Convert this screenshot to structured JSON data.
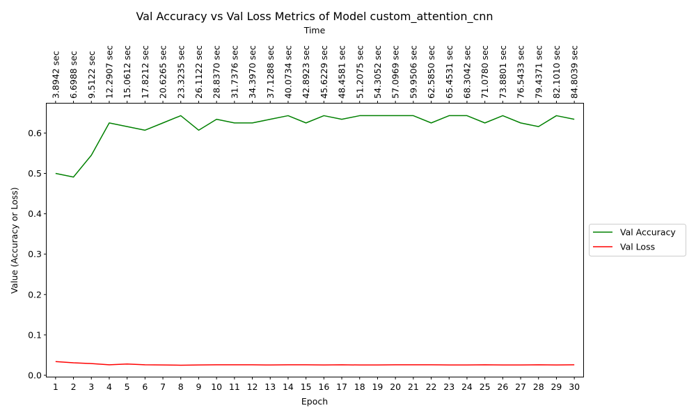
{
  "chart_data": {
    "type": "line",
    "title": "Val Accuracy vs Val Loss Metrics of Model custom_attention_cnn",
    "xlabel": "Epoch",
    "ylabel": "Value (Accuracy or Loss)",
    "top_xlabel": "Time",
    "x": [
      1,
      2,
      3,
      4,
      5,
      6,
      7,
      8,
      9,
      10,
      11,
      12,
      13,
      14,
      15,
      16,
      17,
      18,
      19,
      20,
      21,
      22,
      23,
      24,
      25,
      26,
      27,
      28,
      29,
      30
    ],
    "top_tick_labels": [
      "3.8942 sec",
      "6.6988 sec",
      "9.5122 sec",
      "12.2907 sec",
      "15.0612 sec",
      "17.8212 sec",
      "20.6265 sec",
      "23.3235 sec",
      "26.1122 sec",
      "28.8370 sec",
      "31.7376 sec",
      "34.3970 sec",
      "37.1288 sec",
      "40.0734 sec",
      "42.8923 sec",
      "45.6229 sec",
      "48.4581 sec",
      "51.2075 sec",
      "54.3052 sec",
      "57.0969 sec",
      "59.9506 sec",
      "62.5850 sec",
      "65.4531 sec",
      "68.3042 sec",
      "71.0780 sec",
      "73.8801 sec",
      "76.5433 sec",
      "79.4371 sec",
      "82.1010 sec",
      "84.8039 sec"
    ],
    "y_ticks": [
      "0.0",
      "0.1",
      "0.2",
      "0.3",
      "0.4",
      "0.5",
      "0.6"
    ],
    "xlim": [
      0.5,
      30.5
    ],
    "ylim": [
      -0.0035,
      0.673
    ],
    "grid": false,
    "legend_position": "center-right-outside",
    "series": [
      {
        "name": "Val Accuracy",
        "color": "#008000",
        "values": [
          0.5,
          0.491,
          0.545,
          0.625,
          0.616,
          0.607,
          0.625,
          0.643,
          0.607,
          0.634,
          0.625,
          0.625,
          0.634,
          0.643,
          0.625,
          0.643,
          0.634,
          0.643,
          0.643,
          0.643,
          0.643,
          0.625,
          0.643,
          0.643,
          0.625,
          0.643,
          0.625,
          0.616,
          0.643,
          0.634
        ]
      },
      {
        "name": "Val Loss",
        "color": "#ff0000",
        "values": [
          0.034,
          0.031,
          0.029,
          0.026,
          0.028,
          0.026,
          0.0255,
          0.025,
          0.0255,
          0.026,
          0.026,
          0.026,
          0.0255,
          0.026,
          0.026,
          0.0255,
          0.026,
          0.0255,
          0.0255,
          0.026,
          0.026,
          0.026,
          0.0255,
          0.0255,
          0.026,
          0.0255,
          0.0255,
          0.026,
          0.0255,
          0.026
        ]
      }
    ]
  }
}
